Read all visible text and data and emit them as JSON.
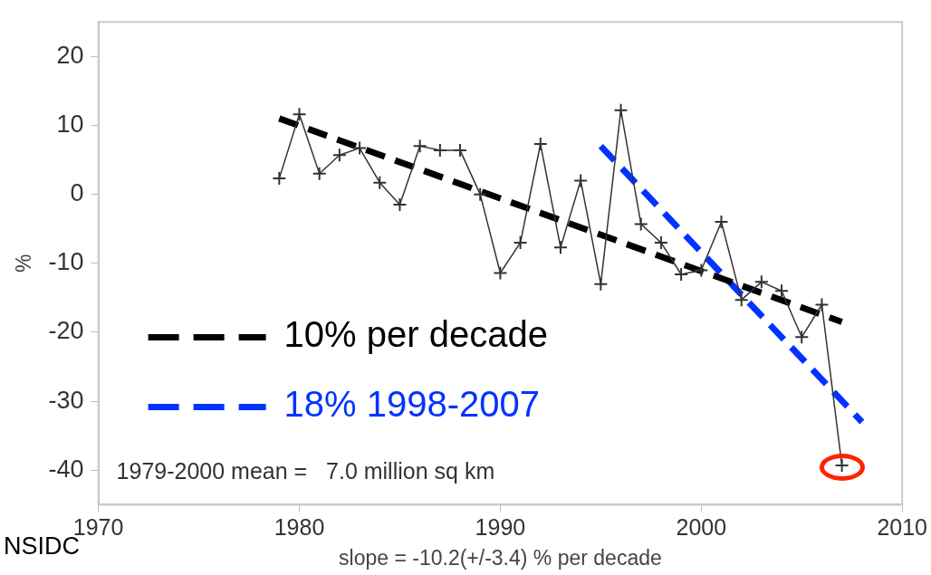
{
  "chart_data": {
    "type": "line",
    "xlabel": "slope = -10.2(+/-3.4) % per decade",
    "ylabel": "%",
    "x": [
      1979,
      1980,
      1981,
      1982,
      1983,
      1984,
      1985,
      1986,
      1987,
      1988,
      1989,
      1990,
      1991,
      1992,
      1993,
      1994,
      1995,
      1996,
      1997,
      1998,
      1999,
      2000,
      2001,
      2002,
      2003,
      2004,
      2005,
      2006,
      2007
    ],
    "series": [
      {
        "color": "#333333",
        "marker": "cross",
        "values": [
          2.3,
          11.6,
          3,
          5.7,
          6.7,
          1.7,
          -1.5,
          7,
          6.4,
          6.4,
          0,
          -11.4,
          -7,
          7.3,
          -7.7,
          2,
          -13,
          12.2,
          -4.3,
          -7,
          -11.6,
          -11,
          -4,
          -15.3,
          -12.7,
          -14,
          -20.7,
          -16,
          -39.3
        ]
      },
      {
        "name": "10% per decade",
        "color": "#000000",
        "marker": "none",
        "line_style": "dashed",
        "x": [
          1979,
          2007
        ],
        "values": [
          11,
          -18.5
        ]
      },
      {
        "name": "18% 1998-2007",
        "color": "#0033ff",
        "marker": "none",
        "line_style": "dashed",
        "x": [
          1995,
          2008
        ],
        "values": [
          7,
          -33
        ]
      }
    ],
    "xlim": [
      1970,
      2010
    ],
    "xticks": [
      1970,
      1980,
      1990,
      2000,
      2010
    ],
    "ylim": [
      -45,
      25
    ],
    "yticks": [
      -40,
      -30,
      -20,
      -10,
      0,
      10,
      20
    ],
    "grid": false,
    "legend": "bottom left",
    "annotations": [
      "1979-2000 mean =   7.0 million sq km",
      "NSIDC"
    ]
  }
}
